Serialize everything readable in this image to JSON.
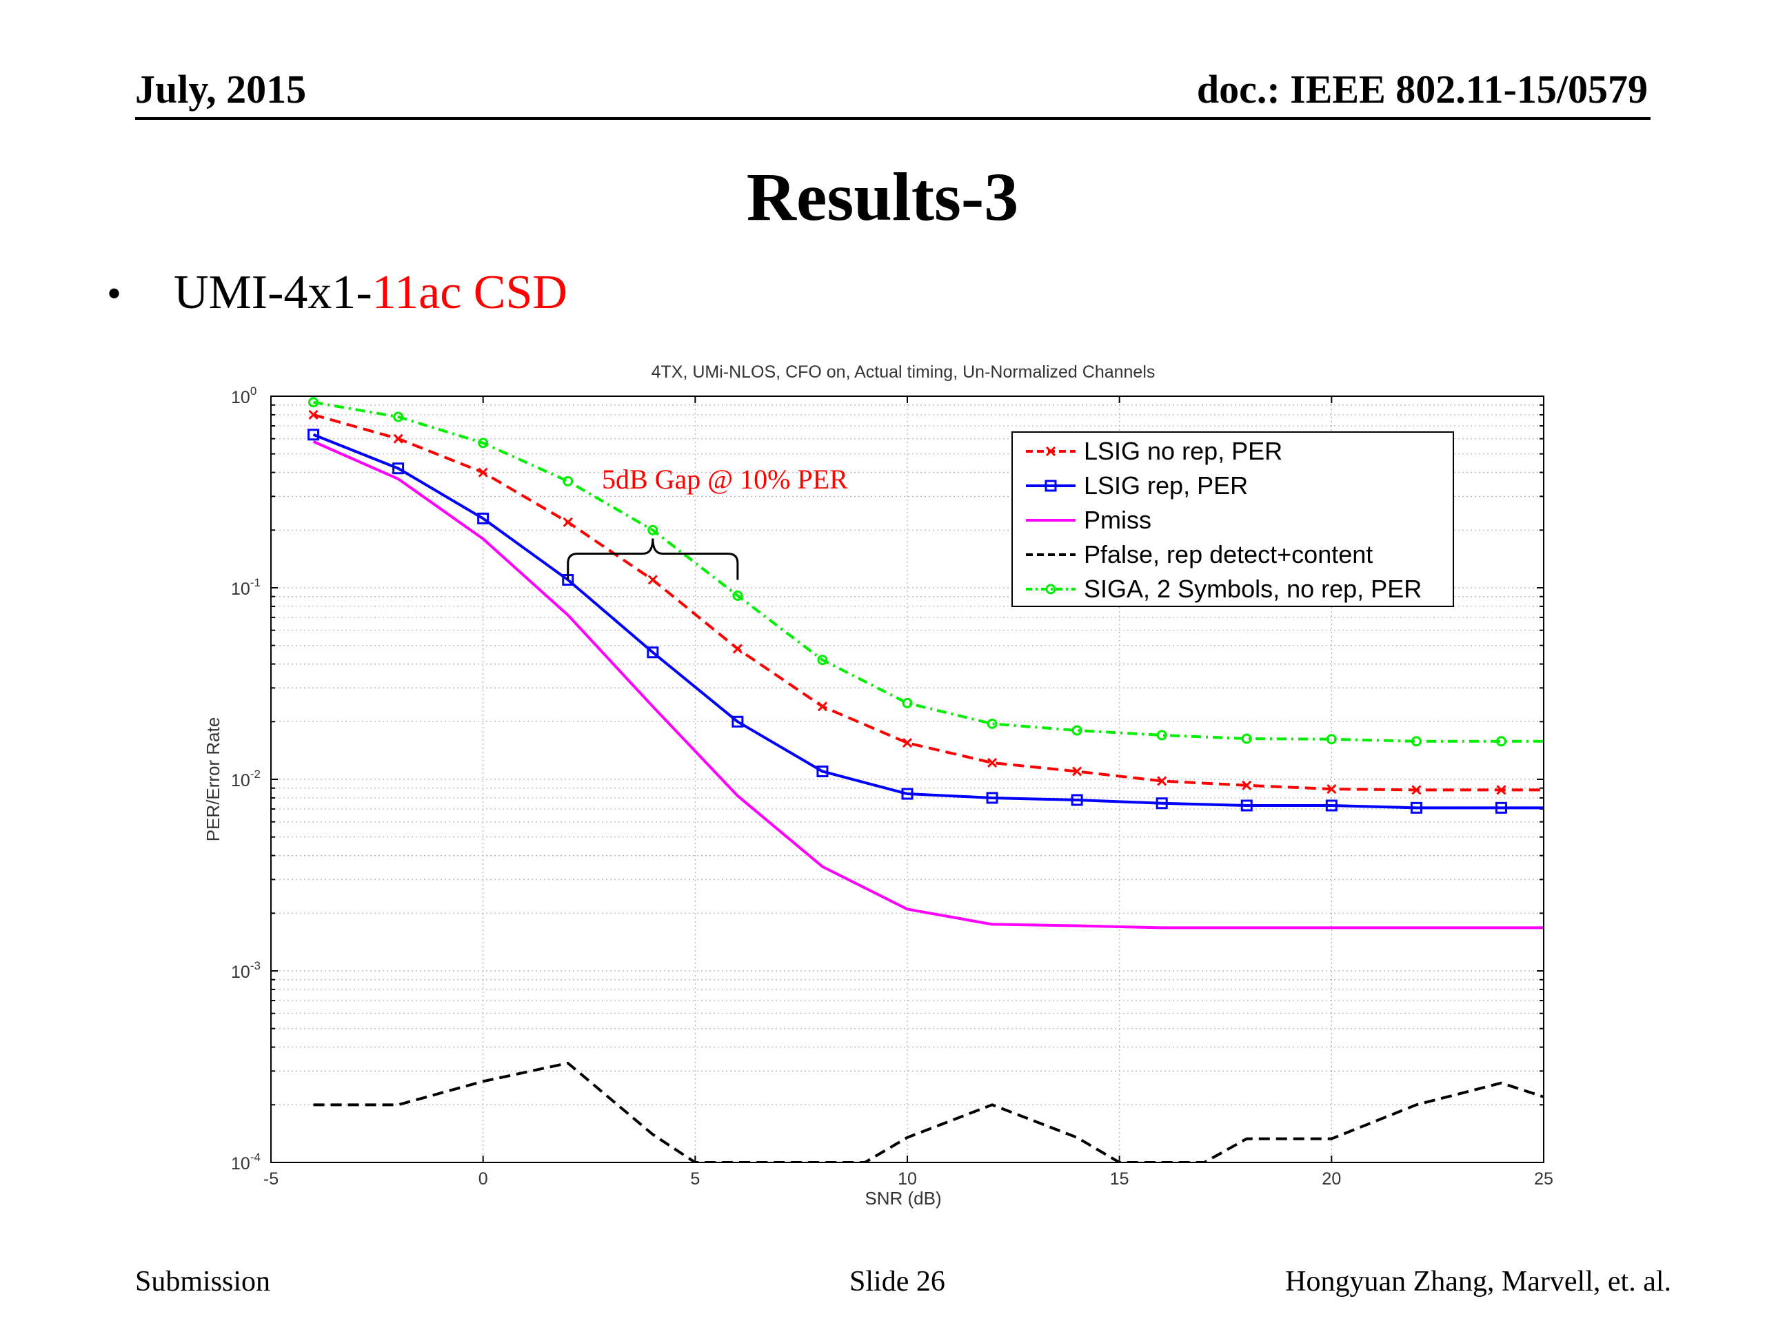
{
  "header": {
    "date": "July, 2015",
    "doc": "doc.: IEEE 802.11-15/0579"
  },
  "slide_title": "Results-3",
  "bullet": {
    "prefix": "UMI-4x1-",
    "highlight": "11ac CSD"
  },
  "footer": {
    "left": "Submission",
    "center": "Slide 26",
    "right": "Hongyuan Zhang,  Marvell, et. al."
  },
  "colors": {
    "red": "#ff0000",
    "blue": "#0000ff",
    "magenta": "#ff00ff",
    "black": "#000000",
    "green": "#00ee00",
    "annotation": "#ff0000"
  },
  "chart_data": {
    "type": "line",
    "title": "4TX, UMi-NLOS, CFO on, Actual timing, Un-Normalized Channels",
    "xlabel": "SNR (dB)",
    "ylabel": "PER/Error Rate",
    "xlim": [
      -5,
      25
    ],
    "ylim": [
      0.0001,
      1
    ],
    "yscale": "log",
    "grid": true,
    "legend_position": "top-right",
    "x_ticks": [
      "-5",
      "0",
      "5",
      "10",
      "15",
      "20",
      "25"
    ],
    "y_ticks": [
      {
        "value": 1,
        "base": "10",
        "exp": "0"
      },
      {
        "value": 0.1,
        "base": "10",
        "exp": "-1"
      },
      {
        "value": 0.01,
        "base": "10",
        "exp": "-2"
      },
      {
        "value": 0.001,
        "base": "10",
        "exp": "-3"
      },
      {
        "value": 0.0001,
        "base": "10",
        "exp": "-4"
      }
    ],
    "series": [
      {
        "name": "LSIG no rep, PER",
        "color": "#ff0000",
        "dash": "dashed",
        "marker": "x",
        "x": [
          -4,
          -2,
          0,
          2,
          4,
          6,
          8,
          10,
          12,
          14,
          16,
          18,
          20,
          22,
          24,
          25
        ],
        "y": [
          0.8,
          0.6,
          0.4,
          0.22,
          0.11,
          0.048,
          0.024,
          0.0155,
          0.0122,
          0.011,
          0.0098,
          0.0093,
          0.0089,
          0.0088,
          0.0088,
          0.0088
        ]
      },
      {
        "name": "LSIG rep, PER",
        "color": "#0000ff",
        "dash": "solid",
        "marker": "square",
        "x": [
          -4,
          -2,
          0,
          2,
          4,
          6,
          8,
          10,
          12,
          14,
          16,
          18,
          20,
          22,
          24,
          25
        ],
        "y": [
          0.63,
          0.42,
          0.23,
          0.11,
          0.046,
          0.02,
          0.011,
          0.0084,
          0.008,
          0.0078,
          0.0075,
          0.0073,
          0.0073,
          0.0071,
          0.0071,
          0.0071
        ]
      },
      {
        "name": "Pmiss",
        "color": "#ff00ff",
        "dash": "solid",
        "marker": "none",
        "x": [
          -4,
          -2,
          0,
          2,
          4,
          6,
          8,
          10,
          12,
          14,
          16,
          18,
          20,
          22,
          24,
          25
        ],
        "y": [
          0.58,
          0.37,
          0.18,
          0.072,
          0.024,
          0.0082,
          0.0035,
          0.0021,
          0.00175,
          0.00172,
          0.00168,
          0.00168,
          0.00168,
          0.00168,
          0.00168,
          0.00168
        ]
      },
      {
        "name": "Pfalse, rep detect+content",
        "color": "#000000",
        "dash": "dashed",
        "marker": "none",
        "x": [
          -4,
          -2,
          0,
          2,
          4,
          5,
          9,
          10,
          12,
          14,
          15,
          17,
          18,
          20,
          22,
          24,
          25
        ],
        "y": [
          0.0002,
          0.0002,
          0.000265,
          0.00033,
          0.00014,
          0.0001,
          0.0001,
          0.000135,
          0.0002,
          0.000135,
          0.0001,
          0.0001,
          0.000133,
          0.000133,
          0.0002,
          0.00026,
          0.00022
        ]
      },
      {
        "name": "SIGA, 2 Symbols,  no rep, PER",
        "color": "#00ee00",
        "dash": "dashdot",
        "marker": "circle",
        "x": [
          -4,
          -2,
          0,
          2,
          4,
          6,
          8,
          10,
          12,
          14,
          16,
          18,
          20,
          22,
          24,
          25
        ],
        "y": [
          0.93,
          0.78,
          0.57,
          0.36,
          0.2,
          0.091,
          0.042,
          0.025,
          0.0195,
          0.018,
          0.017,
          0.0163,
          0.0162,
          0.0158,
          0.0158,
          0.0158
        ]
      }
    ],
    "annotation": {
      "text": "5dB Gap  @ 10% PER",
      "brace_x": [
        2,
        6
      ],
      "brace_y": 0.11
    }
  }
}
